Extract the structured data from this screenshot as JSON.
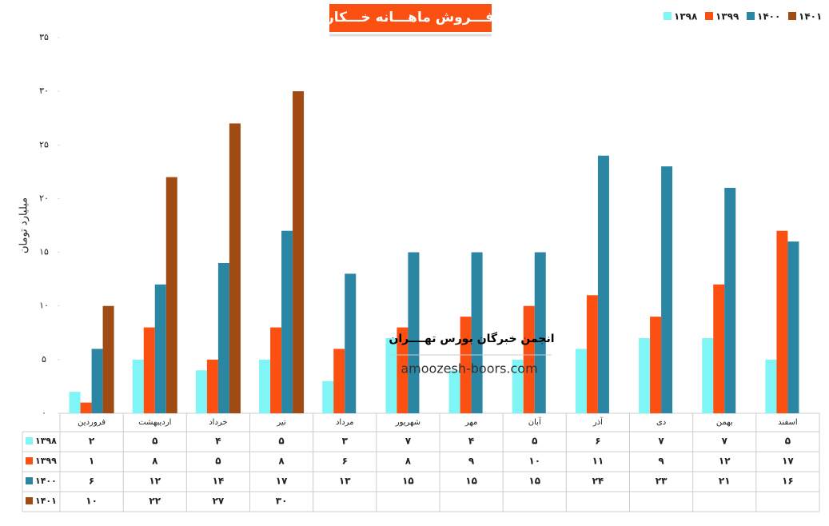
{
  "chart_data": {
    "type": "bar",
    "title": "فـــروش ماهـــانه خـــکار",
    "y_label": "میلیارد تومان",
    "annotations": [
      "انجمن خبرگان بورس تهــــران",
      "amoozesh-boors.com"
    ],
    "categories": [
      "فروردین",
      "اردیبهشت",
      "خرداد",
      "تیر",
      "مرداد",
      "شهریور",
      "مهر",
      "آبان",
      "آذر",
      "دی",
      "بهمن",
      "اسفند"
    ],
    "series": [
      {
        "name": "۱۳۹۸",
        "color": "#7ff5f5",
        "values": [
          2,
          5,
          4,
          5,
          3,
          7,
          4,
          5,
          6,
          7,
          7,
          5
        ],
        "value_labels": [
          "۲",
          "۵",
          "۴",
          "۵",
          "۳",
          "۷",
          "۴",
          "۵",
          "۶",
          "۷",
          "۷",
          "۵"
        ]
      },
      {
        "name": "۱۳۹۹",
        "color": "#fc5012",
        "values": [
          1,
          8,
          5,
          8,
          6,
          8,
          9,
          10,
          11,
          9,
          12,
          17
        ],
        "value_labels": [
          "۱",
          "۸",
          "۵",
          "۸",
          "۶",
          "۸",
          "۹",
          "۱۰",
          "۱۱",
          "۹",
          "۱۲",
          "۱۷"
        ]
      },
      {
        "name": "۱۴۰۰",
        "color": "#2a86a2",
        "values": [
          6,
          12,
          14,
          17,
          13,
          15,
          15,
          15,
          24,
          23,
          21,
          16
        ],
        "value_labels": [
          "۶",
          "۱۲",
          "۱۴",
          "۱۷",
          "۱۳",
          "۱۵",
          "۱۵",
          "۱۵",
          "۲۴",
          "۲۳",
          "۲۱",
          "۱۶"
        ]
      },
      {
        "name": "۱۴۰۱",
        "color": "#a04a14",
        "values": [
          10,
          22,
          27,
          30,
          null,
          null,
          null,
          null,
          null,
          null,
          null,
          null
        ],
        "value_labels": [
          "۱۰",
          "۲۲",
          "۲۷",
          "۳۰",
          null,
          null,
          null,
          null,
          null,
          null,
          null,
          null
        ]
      }
    ],
    "ylim": [
      0,
      35
    ],
    "yticks": [
      {
        "value": 0,
        "label": "۰"
      },
      {
        "value": 5,
        "label": "۵"
      },
      {
        "value": 10,
        "label": "۱۰"
      },
      {
        "value": 15,
        "label": "۱۵"
      },
      {
        "value": 20,
        "label": "۲۰"
      },
      {
        "value": 25,
        "label": "۲۵"
      },
      {
        "value": 30,
        "label": "۳۰"
      },
      {
        "value": 35,
        "label": "۳۵"
      }
    ],
    "grid": false,
    "legend": "top-right"
  }
}
